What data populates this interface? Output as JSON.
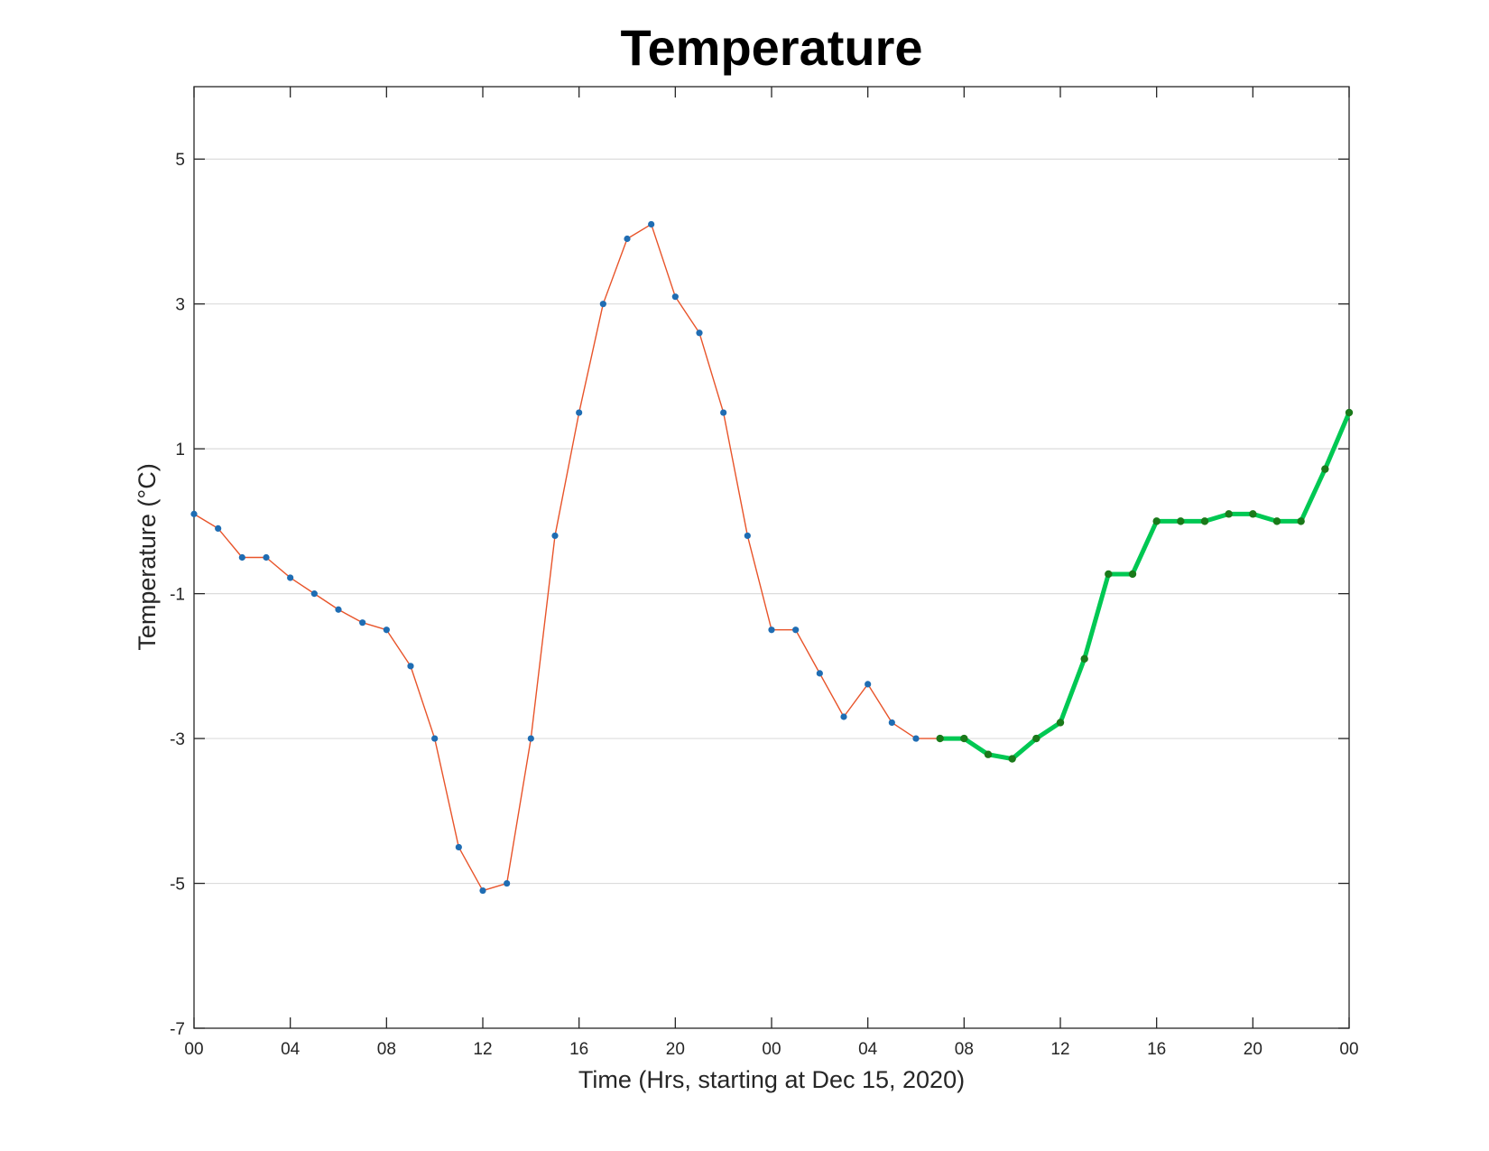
{
  "chart_data": {
    "type": "line",
    "title": "Temperature",
    "xlabel": "Time (Hrs, starting at Dec 15, 2020)",
    "ylabel": "Temperature (°C)",
    "xlim": [
      0,
      48
    ],
    "ylim": [
      -7,
      6
    ],
    "yticks": [
      -7,
      -5,
      -3,
      -1,
      1,
      3,
      5
    ],
    "xticks": [
      0,
      4,
      8,
      12,
      16,
      20,
      24,
      28,
      32,
      36,
      40,
      44,
      48
    ],
    "xtick_labels": [
      "00",
      "04",
      "08",
      "12",
      "16",
      "20",
      "00",
      "04",
      "08",
      "12",
      "16",
      "20",
      "00"
    ],
    "grid": "horizontal",
    "series": [
      {
        "role": "observed",
        "line_color": "#e8542a",
        "marker_color": "#1f6db3",
        "x": [
          0,
          1,
          2,
          3,
          4,
          5,
          6,
          7,
          8,
          9,
          10,
          11,
          12,
          13,
          14,
          15,
          16,
          17,
          18,
          19,
          20,
          21,
          22,
          23,
          24,
          25,
          26,
          27,
          28,
          29,
          30,
          31
        ],
        "y": [
          0.1,
          -0.1,
          -0.5,
          -0.5,
          -0.78,
          -1,
          -1.22,
          -1.4,
          -1.5,
          -2,
          -3,
          -4.5,
          -5.1,
          -5,
          -3,
          -0.2,
          1.5,
          3,
          3.9,
          4.1,
          3.1,
          2.6,
          1.5,
          -0.2,
          -1.5,
          -1.5,
          -2.1,
          -2.7,
          -2.25,
          -2.78,
          -3,
          -3
        ]
      },
      {
        "role": "forecast",
        "line_color": "#00c853",
        "marker_color": "#1a7a1a",
        "x": [
          31,
          32,
          33,
          34,
          35,
          36,
          37,
          38,
          39,
          40,
          41,
          42,
          43,
          44,
          45,
          46,
          47,
          48
        ],
        "y": [
          -3,
          -3,
          -3.22,
          -3.28,
          -3,
          -2.78,
          -1.9,
          -0.73,
          -0.73,
          0,
          0,
          0,
          0.1,
          0.1,
          0,
          0,
          0.72,
          1.5
        ]
      }
    ]
  }
}
